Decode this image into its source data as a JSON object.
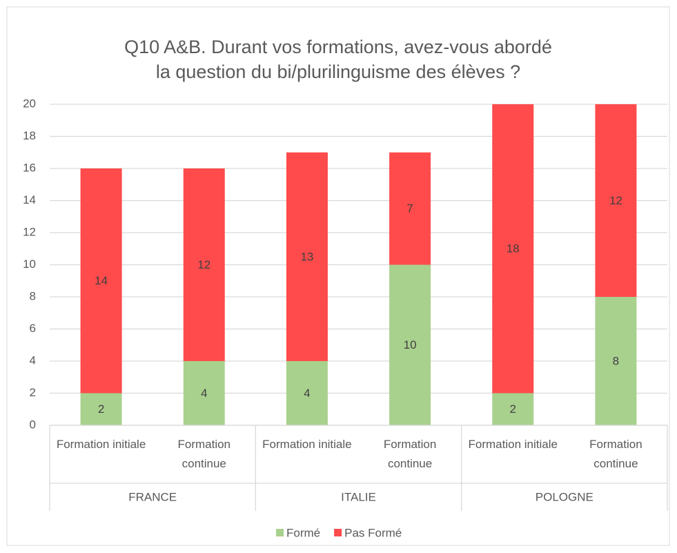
{
  "chart_data": {
    "type": "stacked_bar",
    "title": [
      "Q10 A&B. Durant vos formations, avez-vous abordé",
      "la question du bi/plurilinguisme des élèves ?"
    ],
    "categories": [
      "Formation initiale",
      "Formation continue",
      "Formation initiale",
      "Formation continue",
      "Formation initiale",
      "Formation continue"
    ],
    "groups": [
      "FRANCE",
      "ITALIE",
      "POLOGNE"
    ],
    "series": [
      {
        "name": "Formé",
        "color": "#a9d18e",
        "values": [
          2,
          4,
          4,
          10,
          2,
          8
        ]
      },
      {
        "name": "Pas Formé",
        "color": "#ff4b4b",
        "values": [
          14,
          12,
          13,
          7,
          18,
          12
        ]
      }
    ],
    "ylim": [
      0,
      20
    ],
    "yticks": [
      0,
      2,
      4,
      6,
      8,
      10,
      12,
      14,
      16,
      18,
      20
    ],
    "grid": true,
    "legend": "bottom"
  }
}
